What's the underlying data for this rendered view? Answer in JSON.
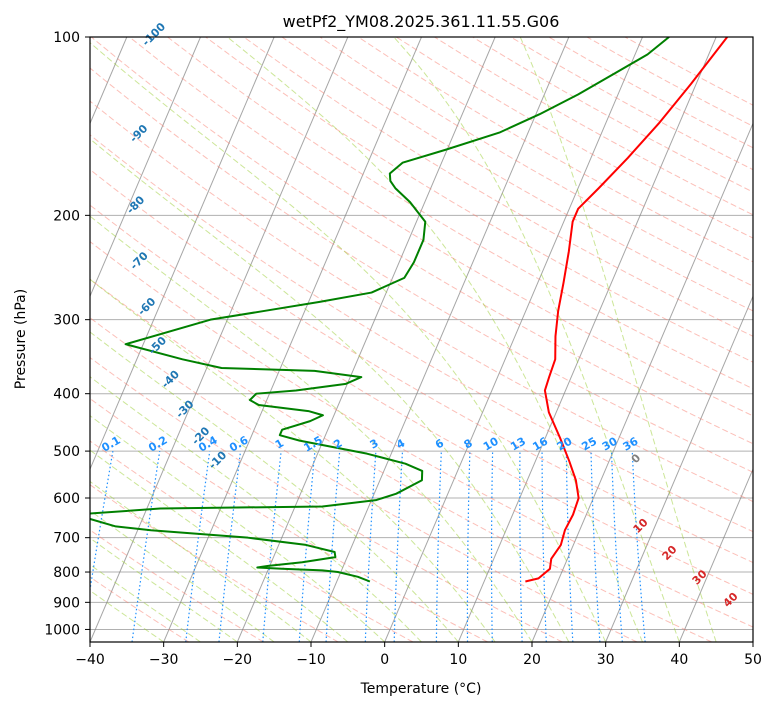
{
  "chart_data": {
    "type": "line",
    "diagram": "skew-t",
    "title": "wetPf2_YM08.2025.361.11.55.G06",
    "xlabel": "Temperature (°C)",
    "ylabel": "Pressure (hPa)",
    "xlim": [
      -40,
      50
    ],
    "ylim": [
      1050,
      100
    ],
    "y_scale": "log",
    "x_ticks": [
      "−40",
      "−30",
      "−20",
      "−10",
      "0",
      "10",
      "20",
      "30",
      "40",
      "50"
    ],
    "y_ticks": [
      "100",
      "200",
      "300",
      "400",
      "500",
      "600",
      "700",
      "800",
      "900",
      "1000"
    ],
    "grid": true,
    "series": [
      {
        "color": "#ff0000",
        "points": [
          [
            15.6,
            830
          ],
          [
            17.2,
            820
          ],
          [
            18.2,
            790
          ],
          [
            17.8,
            760
          ],
          [
            18.3,
            720
          ],
          [
            18.0,
            680
          ],
          [
            18.2,
            640
          ],
          [
            18.0,
            600
          ],
          [
            16.6,
            560
          ],
          [
            14.6,
            520
          ],
          [
            12.0,
            475
          ],
          [
            9.0,
            430
          ],
          [
            7.2,
            395
          ],
          [
            7.0,
            375
          ],
          [
            6.8,
            350
          ],
          [
            5.5,
            320
          ],
          [
            4.4,
            290
          ],
          [
            3.5,
            260
          ],
          [
            2.4,
            230
          ],
          [
            1.2,
            205
          ],
          [
            1.2,
            195
          ],
          [
            2.8,
            180
          ],
          [
            5.0,
            160
          ],
          [
            7.2,
            140
          ],
          [
            9.3,
            120
          ],
          [
            11.5,
            100
          ]
        ]
      },
      {
        "color": "#008000",
        "points": [
          [
            -5.5,
            830
          ],
          [
            -7.4,
            815
          ],
          [
            -10.4,
            800
          ],
          [
            -12.6,
            795
          ],
          [
            -18.2,
            790
          ],
          [
            -21.6,
            786
          ],
          [
            -20.2,
            781
          ],
          [
            -15.8,
            770
          ],
          [
            -11.6,
            755
          ],
          [
            -12.0,
            740
          ],
          [
            -16.3,
            720
          ],
          [
            -24.6,
            700
          ],
          [
            -38.2,
            680
          ],
          [
            -43.2,
            670
          ],
          [
            -49.4,
            640
          ],
          [
            -38.2,
            625
          ],
          [
            -16.3,
            620
          ],
          [
            -9.4,
            605
          ],
          [
            -7.0,
            590
          ],
          [
            -4.3,
            560
          ],
          [
            -4.8,
            540
          ],
          [
            -7.5,
            525
          ],
          [
            -13.3,
            505
          ],
          [
            -23.2,
            480
          ],
          [
            -26.2,
            470
          ],
          [
            -26.2,
            460
          ],
          [
            -22.9,
            445
          ],
          [
            -21.5,
            435
          ],
          [
            -23.7,
            428
          ],
          [
            -30.8,
            418
          ],
          [
            -32.3,
            410
          ],
          [
            -31.8,
            400
          ],
          [
            -26.6,
            395
          ],
          [
            -20.2,
            385
          ],
          [
            -18.5,
            375
          ],
          [
            -25.2,
            366
          ],
          [
            -38.0,
            362
          ],
          [
            -43.8,
            350
          ],
          [
            -52.4,
            330
          ],
          [
            -42.3,
            300
          ],
          [
            -35.5,
            290
          ],
          [
            -28.5,
            280
          ],
          [
            -22.0,
            270
          ],
          [
            -18.4,
            255
          ],
          [
            -18.0,
            240
          ],
          [
            -18.0,
            220
          ],
          [
            -18.8,
            205
          ],
          [
            -22.0,
            190
          ],
          [
            -24.8,
            180
          ],
          [
            -25.9,
            175
          ],
          [
            -26.4,
            170
          ],
          [
            -25.3,
            163
          ],
          [
            -20.2,
            155
          ],
          [
            -13.9,
            145
          ],
          [
            -9.5,
            135
          ],
          [
            -5.4,
            125
          ],
          [
            -1.6,
            115
          ],
          [
            1.7,
            107
          ],
          [
            3.6,
            100
          ]
        ]
      }
    ],
    "dry_adiabat_labels": [
      "-100",
      "-90",
      "-80",
      "-70",
      "-60",
      "-50",
      "-40",
      "-30",
      "-20",
      "-10",
      "0",
      "10",
      "20",
      "30",
      "40"
    ],
    "mixing_ratio_labels": [
      "0.1",
      "0.2",
      "0.4",
      "0.6",
      "1",
      "1.5",
      "2",
      "3",
      "4",
      "6",
      "8",
      "10",
      "13",
      "16",
      "20",
      "25",
      "30",
      "36"
    ],
    "colors": {
      "temperature": "#ff0000",
      "dewpoint": "#008000",
      "dry_adiabats": "#fa8072",
      "moist_adiabats": "#9acd32",
      "mixing_ratio": "#1e90ff",
      "dry_adiabat_label_cold": "#1f77b4",
      "dry_adiabat_label_warm": "#d62728",
      "dry_adiabat_label_zero": "#808080",
      "isotherms": "#808080",
      "grid": "#b0b0b0"
    }
  }
}
